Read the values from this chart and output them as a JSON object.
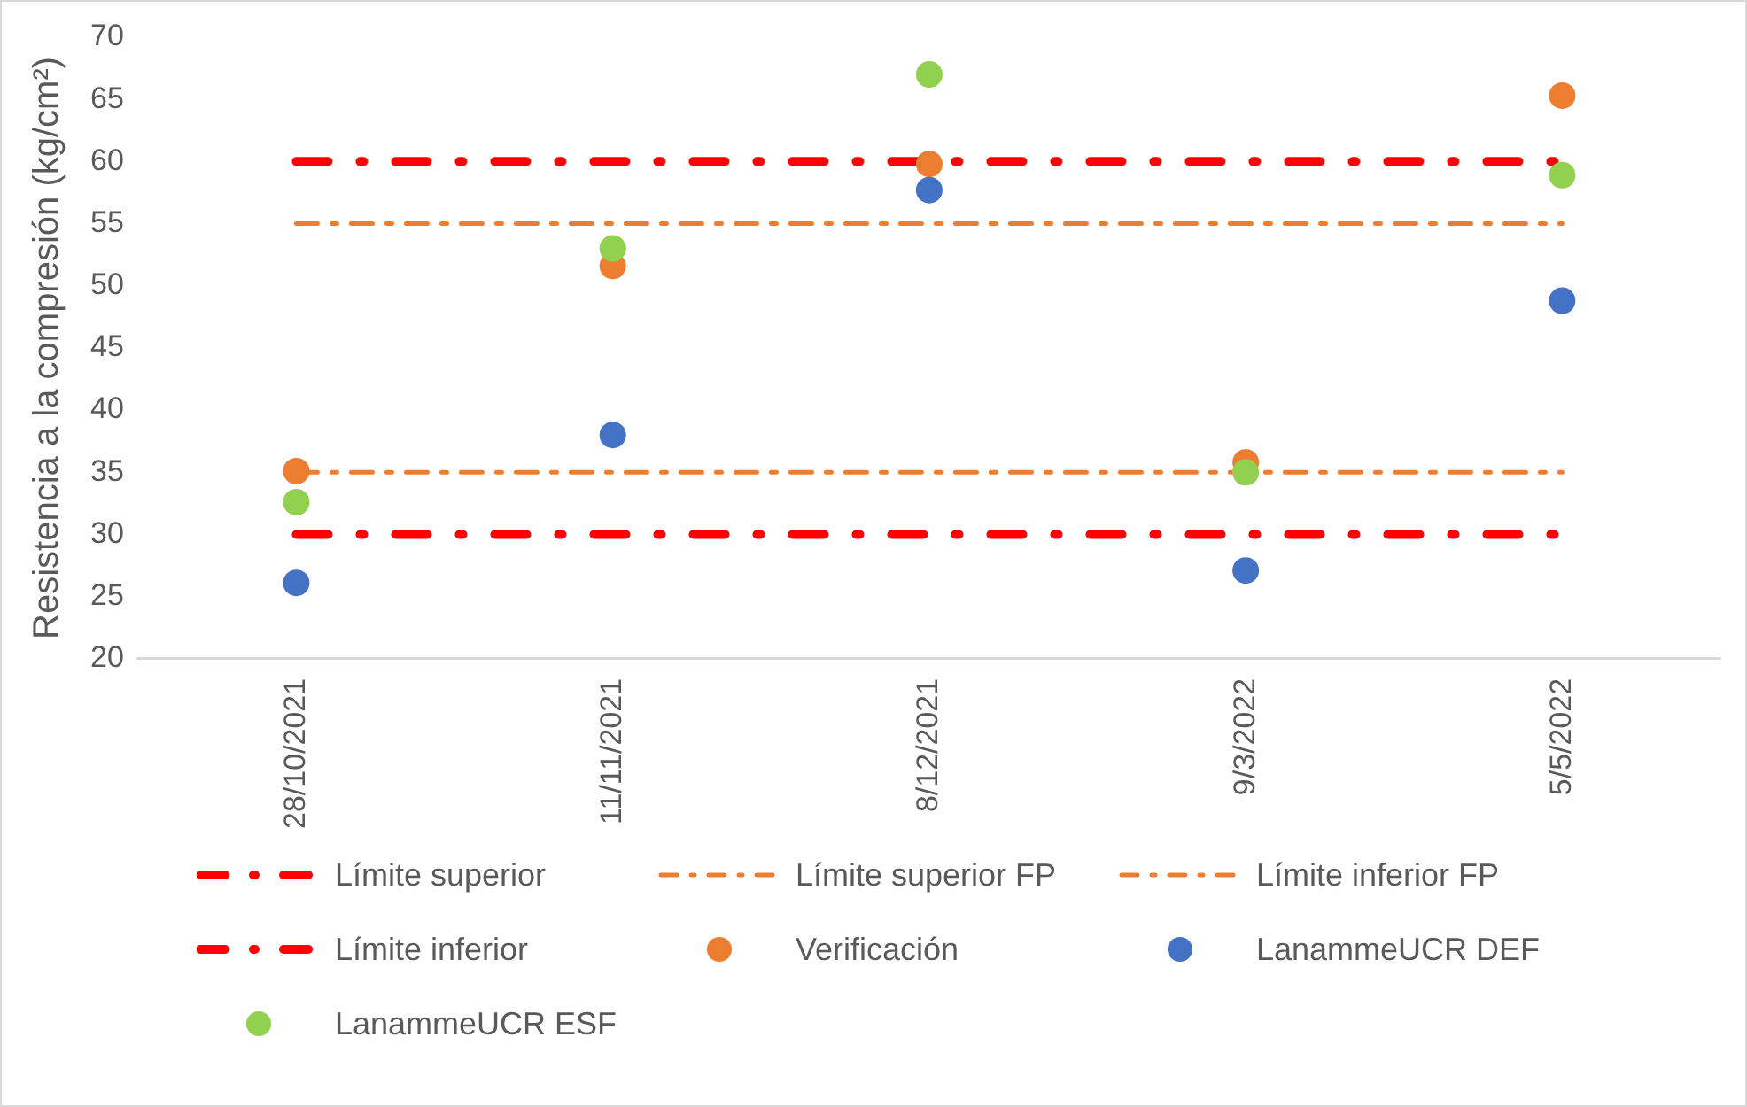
{
  "chart_data": {
    "type": "scatter",
    "ylabel": "Resistencia a la compresión (kg/cm²)",
    "categories": [
      "28/10/2021",
      "11/11/2021",
      "8/12/2021",
      "9/3/2022",
      "5/5/2022"
    ],
    "ylim": [
      20,
      70
    ],
    "yticks": [
      20,
      25,
      30,
      35,
      40,
      45,
      50,
      55,
      60,
      65,
      70
    ],
    "grid": false,
    "legend": "bottom",
    "series": [
      {
        "name": "Límite superior",
        "type": "line",
        "color": "#ff0000",
        "marker": "none",
        "line_style": "dashed",
        "values": [
          60,
          60,
          60,
          60,
          60
        ]
      },
      {
        "name": "Límite superior FP",
        "type": "line",
        "color": "#ed7d31",
        "marker": "none",
        "line_style": "dashed",
        "values": [
          55,
          55,
          55,
          55,
          55
        ]
      },
      {
        "name": "Límite inferior FP",
        "type": "line",
        "color": "#ed7d31",
        "marker": "none",
        "line_style": "dashed",
        "values": [
          35,
          35,
          35,
          35,
          35
        ]
      },
      {
        "name": "Límite inferior",
        "type": "line",
        "color": "#ff0000",
        "marker": "none",
        "line_style": "dashed",
        "values": [
          30,
          30,
          30,
          30,
          30
        ]
      },
      {
        "name": "Verificación",
        "color": "#ed7d31",
        "marker": "circle",
        "values": [
          35.1,
          51.6,
          59.8,
          35.8,
          65.3
        ]
      },
      {
        "name": "LanammeUCR DEF",
        "color": "#4472c4",
        "marker": "circle",
        "values": [
          26.1,
          38,
          57.7,
          27.1,
          48.8
        ]
      },
      {
        "name": "LanammeUCR ESF",
        "color": "#92d050",
        "marker": "circle",
        "values": [
          32.6,
          53,
          67,
          35,
          58.9
        ]
      }
    ]
  }
}
